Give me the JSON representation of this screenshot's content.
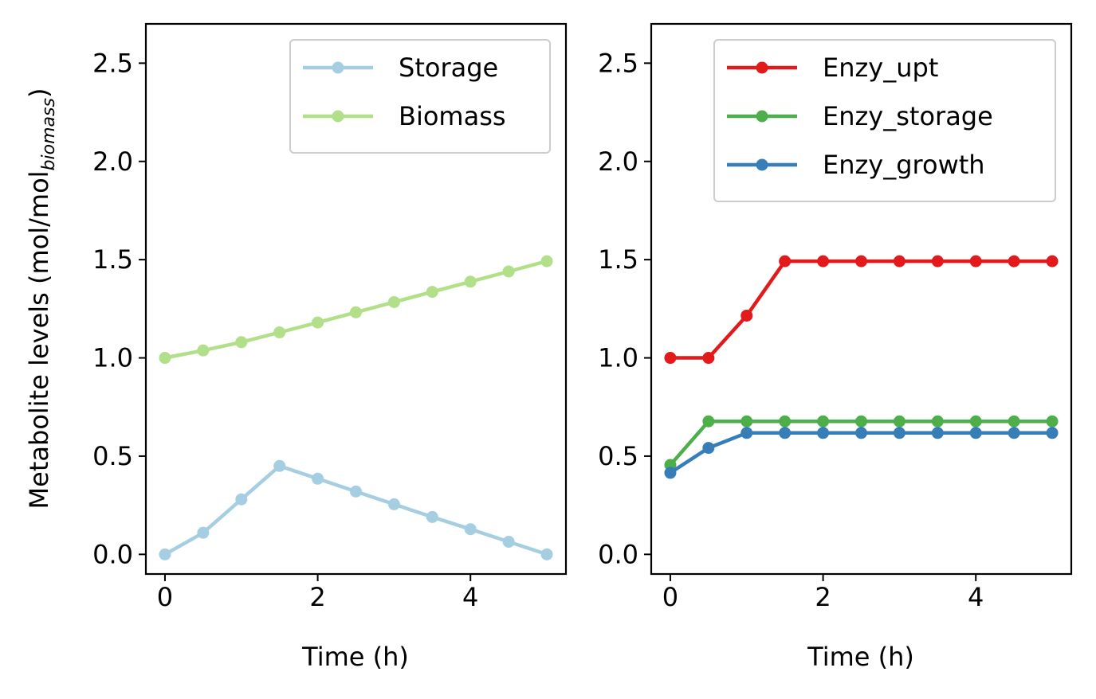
{
  "chart_data": [
    {
      "type": "line",
      "panel": "left",
      "title": "",
      "xlabel": "Time (h)",
      "ylabel_main": "Metabolite levels (mol/mol",
      "ylabel_sub": "biomass",
      "ylabel_close": ")",
      "xlim": [
        -0.25,
        5.25
      ],
      "ylim": [
        -0.1,
        2.7
      ],
      "xticks": [
        0,
        2,
        4
      ],
      "xtick_labels": [
        "0",
        "2",
        "4"
      ],
      "yticks": [
        0.0,
        0.5,
        1.0,
        1.5,
        2.0,
        2.5
      ],
      "ytick_labels": [
        "0.0",
        "0.5",
        "1.0",
        "1.5",
        "2.0",
        "2.5"
      ],
      "legend_position": "top-right",
      "x": [
        0,
        0.5,
        1,
        1.5,
        2,
        2.5,
        3,
        3.5,
        4,
        4.5,
        5
      ],
      "series": [
        {
          "name": "Storage",
          "color": "#a6cee3",
          "values": [
            0.0,
            0.11,
            0.28,
            0.45,
            0.385,
            0.32,
            0.255,
            0.19,
            0.128,
            0.064,
            0.0
          ]
        },
        {
          "name": "Biomass",
          "color": "#b2df8a",
          "values": [
            1.0,
            1.038,
            1.08,
            1.13,
            1.18,
            1.232,
            1.284,
            1.336,
            1.388,
            1.44,
            1.492
          ]
        }
      ]
    },
    {
      "type": "line",
      "panel": "right",
      "title": "",
      "xlabel": "Time (h)",
      "xlim": [
        -0.25,
        5.25
      ],
      "ylim": [
        -0.1,
        2.7
      ],
      "xticks": [
        0,
        2,
        4
      ],
      "xtick_labels": [
        "0",
        "2",
        "4"
      ],
      "yticks": [
        0.0,
        0.5,
        1.0,
        1.5,
        2.0,
        2.5
      ],
      "ytick_labels": [
        "0.0",
        "0.5",
        "1.0",
        "1.5",
        "2.0",
        "2.5"
      ],
      "legend_position": "top-right",
      "x": [
        0,
        0.5,
        1,
        1.5,
        2,
        2.5,
        3,
        3.5,
        4,
        4.5,
        5
      ],
      "series": [
        {
          "name": "Enzy_upt",
          "color": "#e31a1c",
          "values": [
            1.0,
            1.0,
            1.215,
            1.492,
            1.492,
            1.492,
            1.492,
            1.492,
            1.492,
            1.492,
            1.492
          ]
        },
        {
          "name": "Enzy_storage",
          "color": "#4daf4a",
          "values": [
            0.455,
            0.677,
            0.677,
            0.677,
            0.677,
            0.677,
            0.677,
            0.677,
            0.677,
            0.677,
            0.677
          ]
        },
        {
          "name": "Enzy_growth",
          "color": "#377eb8",
          "values": [
            0.415,
            0.542,
            0.618,
            0.618,
            0.618,
            0.618,
            0.618,
            0.618,
            0.618,
            0.618,
            0.618
          ]
        }
      ]
    }
  ]
}
